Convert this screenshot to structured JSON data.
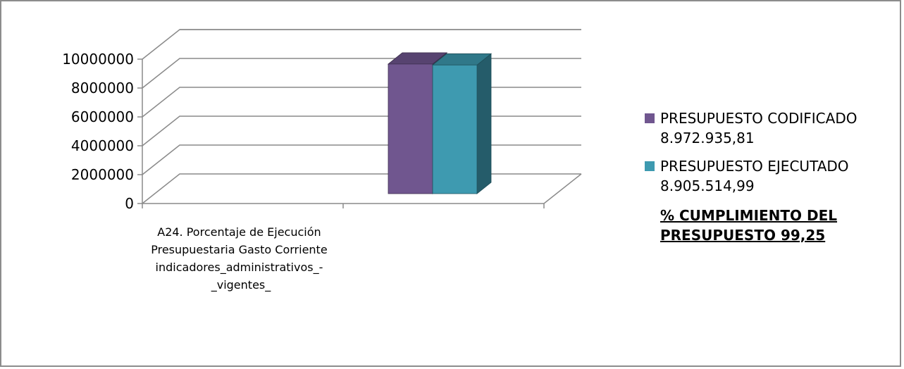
{
  "chart_data": {
    "type": "bar",
    "title": "",
    "xlabel": "",
    "ylabel": "",
    "ylim": [
      0,
      10000000
    ],
    "yticks": [
      0,
      2000000,
      4000000,
      6000000,
      8000000,
      10000000
    ],
    "grid": true,
    "legend_position": "right",
    "categories": [
      "A24. Porcentaje de Ejecución Presupuestaria Gasto Corriente indicadores_administrativos_-_vigentes_"
    ],
    "category_lines": [
      "A24. Porcentaje de Ejecución",
      "Presupuestaria Gasto Corriente",
      "indicadores_administrativos_-",
      "_vigentes_"
    ],
    "series": [
      {
        "name": "PRESUPUESTO CODIFICADO",
        "value_label": "8.972.935,81",
        "color": "#70568f",
        "values": [
          8972935.81
        ]
      },
      {
        "name": "PRESUPUESTO EJECUTADO",
        "value_label": "8.905.514,99",
        "color": "#3e9ab0",
        "values": [
          8905514.99
        ]
      }
    ],
    "annotation": "% CUMPLIMIENTO DEL\nPRESUPUESTO  99,25"
  }
}
